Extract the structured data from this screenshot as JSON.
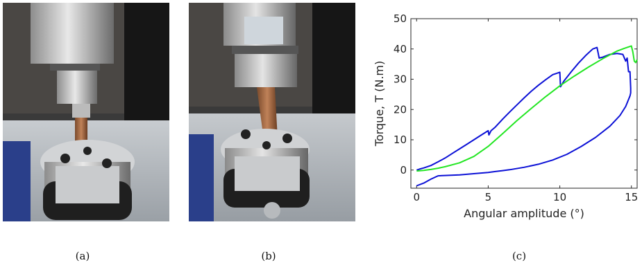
{
  "figure": {
    "panels": [
      {
        "label": "(a)",
        "image": "photo of torsion test machine with wooden specimen clamped in chuck"
      },
      {
        "label": "(b)",
        "image": "photo of torsion test machine with twisted wooden specimen"
      },
      {
        "label": "(c)"
      }
    ]
  },
  "colors": {
    "blue": "#0b10d6",
    "green": "#22e622"
  },
  "chart_data": {
    "type": "line",
    "title": "",
    "xlabel": "Angular amplitude (°)",
    "ylabel": "Torque, T (N.m)",
    "xlim": [
      -0.4,
      15.4
    ],
    "ylim": [
      -6,
      50
    ],
    "xticks": [
      0,
      5,
      10,
      15
    ],
    "yticks": [
      0,
      10,
      20,
      30,
      40,
      50
    ],
    "grid": false,
    "series": [
      {
        "color": "#0b10d6",
        "x": [
          0,
          0.2,
          0.5,
          1,
          1.5,
          2,
          2.5,
          3,
          3.5,
          4,
          4.5,
          5,
          5.05,
          5.2,
          5.5,
          6,
          6.5,
          7,
          7.5,
          8,
          8.5,
          9,
          9.5,
          10,
          10.05,
          10.3,
          10.8,
          11.3,
          11.8,
          12.3,
          12.6,
          12.75,
          13,
          13.5,
          14,
          14.4,
          14.6,
          14.7,
          14.8,
          14.9,
          14.95,
          14.95,
          14.9,
          14.6,
          14.2,
          13.5,
          12.5,
          11.5,
          10.5,
          9.5,
          8.5,
          7.5,
          6.5,
          6,
          5.5,
          5,
          4,
          3,
          2,
          1.5,
          1,
          0.5,
          0
        ],
        "y": [
          0,
          0.3,
          0.7,
          1.5,
          2.7,
          4,
          5.5,
          7,
          8.5,
          10,
          11.5,
          13,
          11.6,
          13,
          14.2,
          16.8,
          19.2,
          21.5,
          23.8,
          26,
          28,
          29.8,
          31.5,
          32.3,
          27.5,
          29.5,
          32.5,
          35.3,
          37.8,
          40,
          40.5,
          37,
          37.3,
          38.2,
          38.5,
          38.2,
          36,
          37,
          32.5,
          32.5,
          27,
          25.5,
          24.5,
          21,
          18,
          14.5,
          10.8,
          7.8,
          5.2,
          3.3,
          1.9,
          0.9,
          0.1,
          -0.2,
          -0.5,
          -0.8,
          -1.2,
          -1.6,
          -1.8,
          -1.9,
          -3,
          -4.3,
          -5.2
        ]
      },
      {
        "color": "#22e622",
        "x": [
          0,
          0.5,
          1,
          1.5,
          2,
          3,
          4,
          5,
          6,
          7,
          8,
          9,
          10,
          11,
          12,
          13,
          14,
          14.5,
          15,
          15.1,
          15.2,
          15.3,
          15.4
        ],
        "y": [
          -0.3,
          -0.1,
          0.2,
          0.6,
          1.1,
          2.4,
          4.5,
          7.8,
          12,
          16.3,
          20.3,
          24.2,
          27.8,
          31,
          34,
          36.8,
          39.3,
          40.2,
          41,
          39,
          36,
          35.5,
          36.5
        ]
      }
    ]
  }
}
